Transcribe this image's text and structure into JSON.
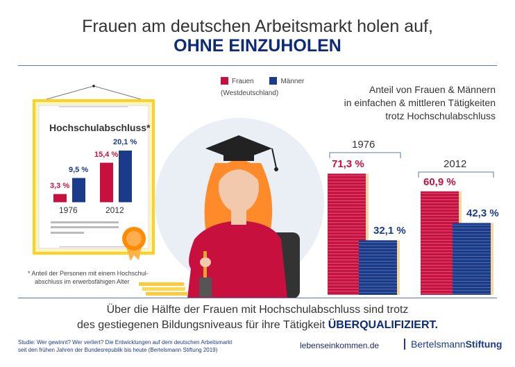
{
  "title": {
    "line1": "Frauen am deutschen Arbeitsmarkt holen auf,",
    "line2": "OHNE EINZUHOLEN"
  },
  "legend": {
    "women": "Frauen",
    "men": "Männer",
    "note": "(Westdeutschland)"
  },
  "colors": {
    "women": "#c8103f",
    "men": "#1a3a8a",
    "frame": "#ffd21f",
    "title_accent": "#0d2a7a"
  },
  "right_heading": {
    "line1": "Anteil von Frauen & Männern",
    "line2": "in einfachen & mittleren Tätigkeiten",
    "line3": "trotz Hochschulabschluss"
  },
  "footnote": {
    "line1": "* Anteil der Personen mit einem Hochschul-",
    "line2": "abschluss im erwerbsfähigen Alter"
  },
  "bottom": {
    "line1": "Über die Hälfte der Frauen mit Hochschulabschluss sind trotz",
    "line2": "des gestiegenen Bildungsniveaus für ihre Tätigkeit",
    "emphasis": "ÜBERQUALIFIZIERT."
  },
  "footer": {
    "study_line1": "Studie: Wer gewinnt? Wer verliert? Die Entwicklungen auf dem deutschen Arbeitsmarkt",
    "study_line2": "seit den frühen Jahren der Bundesrepublik bis heute (Bertelsmann Stiftung 2019)",
    "site": "lebenseinkommen.de",
    "brand_a": "Bertelsmann",
    "brand_b": "Stiftung"
  },
  "chart_data": [
    {
      "type": "bar",
      "title": "Hochschulabschluss*",
      "categories": [
        "1976",
        "2012"
      ],
      "series": [
        {
          "name": "Frauen",
          "values": [
            3.3,
            15.4
          ],
          "labels": [
            "3,3 %",
            "15,4 %"
          ]
        },
        {
          "name": "Männer",
          "values": [
            9.5,
            20.1
          ],
          "labels": [
            "9,5 %",
            "20,1 %"
          ]
        }
      ],
      "unit": "%"
    },
    {
      "type": "bar",
      "title": "Anteil von Frauen & Männern in einfachen & mittleren Tätigkeiten trotz Hochschulabschluss",
      "categories": [
        "1976",
        "2012"
      ],
      "series": [
        {
          "name": "Frauen",
          "values": [
            71.3,
            60.9
          ],
          "labels": [
            "71,3 %",
            "60,9 %"
          ]
        },
        {
          "name": "Männer",
          "values": [
            32.1,
            42.3
          ],
          "labels": [
            "32,1 %",
            "42,3 %"
          ]
        }
      ],
      "unit": "%"
    }
  ]
}
